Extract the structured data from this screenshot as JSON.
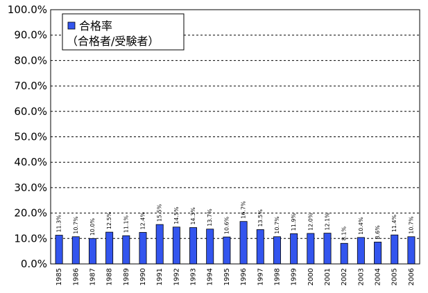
{
  "chart_data": {
    "type": "bar",
    "categories": [
      "1985",
      "1986",
      "1987",
      "1988",
      "1989",
      "1990",
      "1991",
      "1992",
      "1993",
      "1994",
      "1995",
      "1996",
      "1997",
      "1998",
      "1999",
      "2000",
      "2001",
      "2002",
      "2003",
      "2004",
      "2005",
      "2006"
    ],
    "series": [
      {
        "name": "合格率",
        "values": [
          11.3,
          10.7,
          10.0,
          12.5,
          11.1,
          12.4,
          15.5,
          14.5,
          14.3,
          13.7,
          10.6,
          16.7,
          13.5,
          10.7,
          11.9,
          12.0,
          12.1,
          8.1,
          10.4,
          8.6,
          11.4,
          10.7
        ],
        "data_labels": [
          "11.3%",
          "10.7%",
          "10.0%",
          "12.5%",
          "11.1%",
          "12.4%",
          "15.5%",
          "14.5%",
          "14.3%",
          "13.7%",
          "10.6%",
          "16.7%",
          "13.5%",
          "10.7%",
          "11.9%",
          "12.0%",
          "12.1%",
          "8.1%",
          "10.4%",
          "8.6%",
          "11.4%",
          "10.7%"
        ]
      }
    ],
    "legend": {
      "line1": "合格率",
      "line2": "（合格者/受験者）",
      "placement": "top-left"
    },
    "ylim": [
      0,
      100
    ],
    "yticks": [
      0,
      10,
      20,
      30,
      40,
      50,
      60,
      70,
      80,
      90,
      100
    ],
    "ytick_labels": [
      "0.0%",
      "10.0%",
      "20.0%",
      "30.0%",
      "40.0%",
      "50.0%",
      "60.0%",
      "70.0%",
      "80.0%",
      "90.0%",
      "100.0%"
    ],
    "grid": "horizontal dashed",
    "bar_color": "#3355ee"
  }
}
